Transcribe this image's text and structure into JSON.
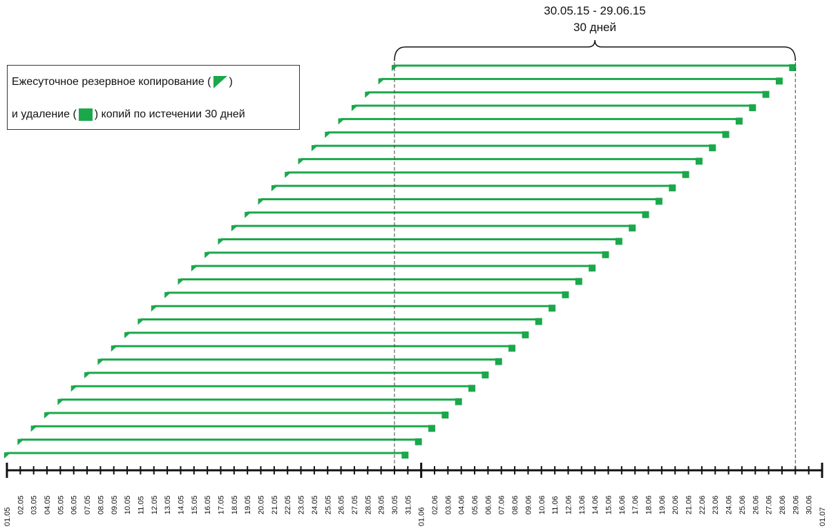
{
  "header": {
    "range": "30.05.15 - 29.06.15",
    "duration": "30 дней"
  },
  "legend": {
    "line1_before": "Ежесуточное резервное копирование (",
    "line1_after": ")",
    "line2_before": "и удаление (",
    "line2_after": ") копий по истечении 30 дней"
  },
  "axis": {
    "labels": [
      "01.05",
      "02.05",
      "03.05",
      "04.05",
      "05.05",
      "06.05",
      "07.05",
      "08.05",
      "09.05",
      "10.05",
      "11.05",
      "12.05",
      "13.05",
      "14.05",
      "15.05",
      "16.05",
      "17.05",
      "18.05",
      "19.05",
      "20.05",
      "21.05",
      "22.05",
      "23.05",
      "24.05",
      "25.05",
      "26.05",
      "27.05",
      "28.05",
      "29.05",
      "30.05",
      "31.05",
      "01.06",
      "02.06",
      "03.06",
      "04.06",
      "05.06",
      "06.06",
      "07.06",
      "08.06",
      "09.06",
      "10.06",
      "11.06",
      "12.06",
      "13.06",
      "14.06",
      "15.06",
      "16.06",
      "17.06",
      "18.06",
      "19.06",
      "20.06",
      "21.06",
      "22.06",
      "23.06",
      "24.06",
      "25.06",
      "26.06",
      "27.06",
      "28.06",
      "29.06",
      "30.06",
      "01.07"
    ]
  }
}
